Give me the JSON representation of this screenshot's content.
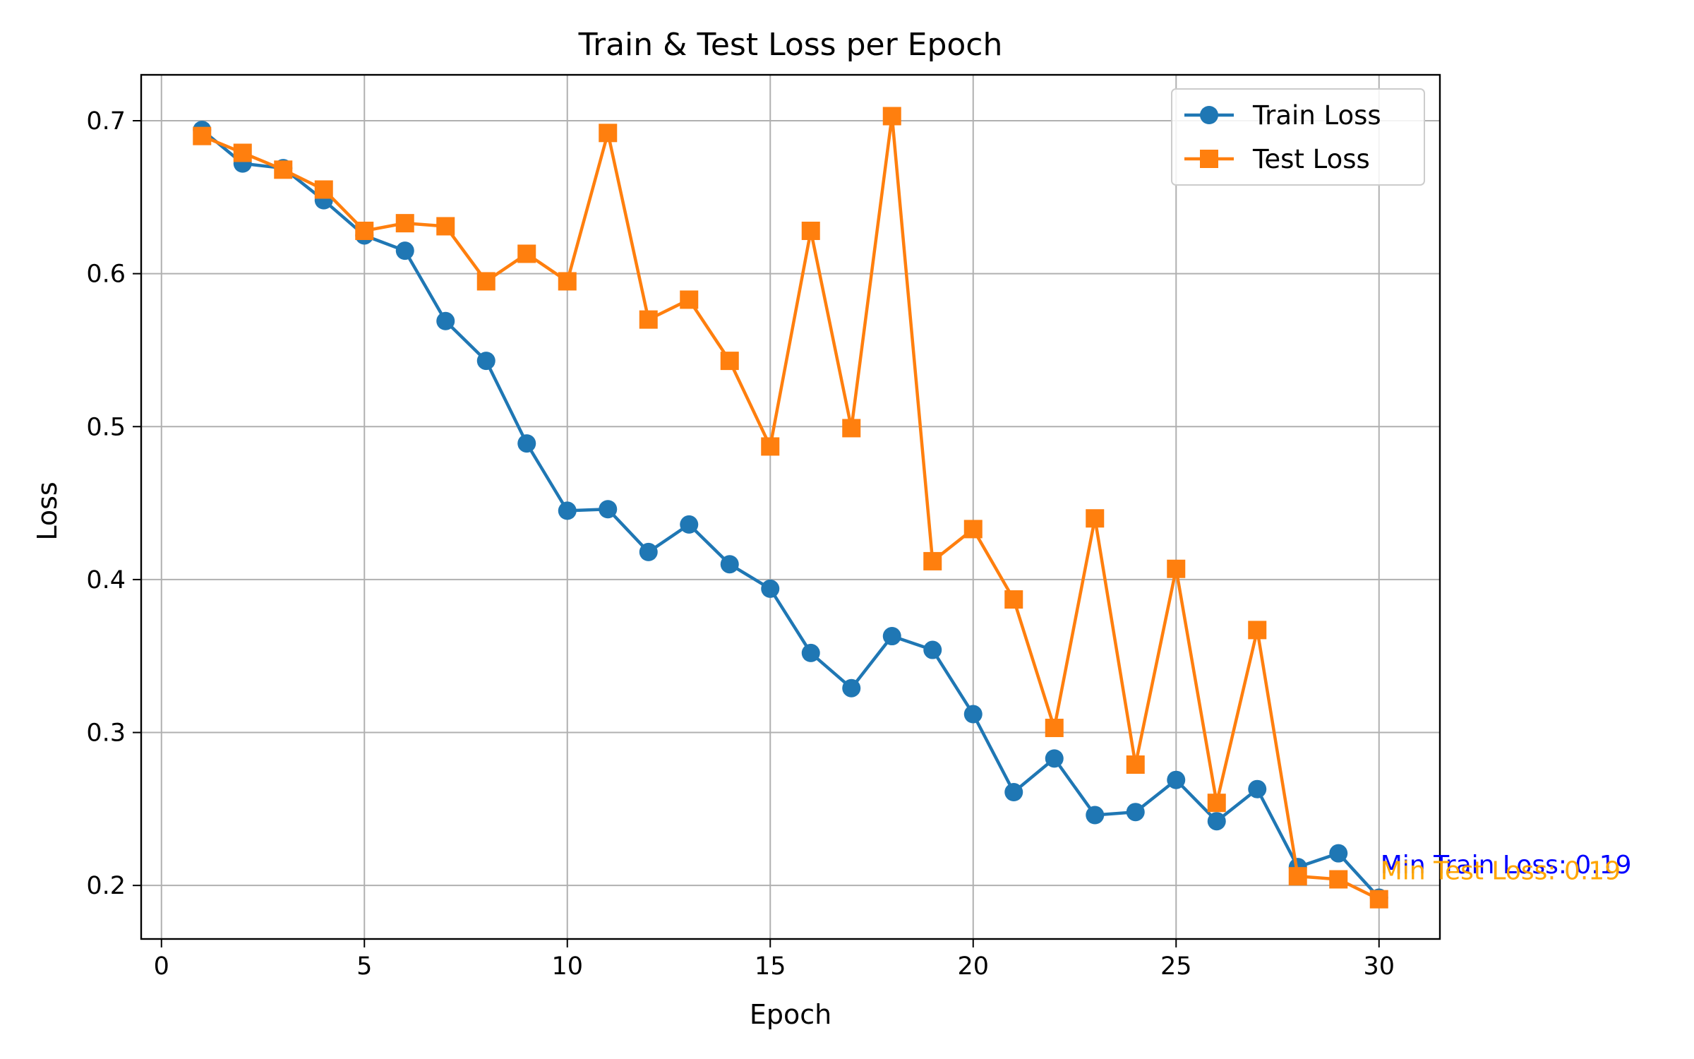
{
  "chart_data": {
    "type": "line",
    "title": "Train & Test Loss per Epoch",
    "xlabel": "Epoch",
    "ylabel": "Loss",
    "xlim": [
      -0.5,
      31.5
    ],
    "ylim": [
      0.165,
      0.73
    ],
    "xticks": [
      0,
      5,
      10,
      15,
      20,
      25,
      30
    ],
    "yticks": [
      0.2,
      0.3,
      0.4,
      0.5,
      0.6,
      0.7
    ],
    "grid": true,
    "legend": "top-right",
    "x": [
      1,
      2,
      3,
      4,
      5,
      6,
      7,
      8,
      9,
      10,
      11,
      12,
      13,
      14,
      15,
      16,
      17,
      18,
      19,
      20,
      21,
      22,
      23,
      24,
      25,
      26,
      27,
      28,
      29,
      30
    ],
    "series": [
      {
        "name": "Train Loss",
        "marker": "circle",
        "color": "#1f77b4",
        "values": [
          0.694,
          0.672,
          0.669,
          0.648,
          0.625,
          0.615,
          0.569,
          0.543,
          0.489,
          0.445,
          0.446,
          0.418,
          0.436,
          0.41,
          0.394,
          0.352,
          0.329,
          0.363,
          0.354,
          0.312,
          0.261,
          0.283,
          0.246,
          0.248,
          0.269,
          0.242,
          0.263,
          0.212,
          0.221,
          0.192
        ]
      },
      {
        "name": "Test Loss",
        "marker": "square",
        "color": "#ff7f0e",
        "values": [
          0.69,
          0.679,
          0.668,
          0.655,
          0.628,
          0.633,
          0.631,
          0.595,
          0.613,
          0.595,
          0.692,
          0.57,
          0.583,
          0.543,
          0.487,
          0.628,
          0.499,
          0.703,
          0.412,
          0.433,
          0.387,
          0.303,
          0.44,
          0.279,
          0.407,
          0.254,
          0.367,
          0.206,
          0.204,
          0.191
        ]
      }
    ],
    "annotations": [
      {
        "text": "Min Train Loss: 0.19",
        "x": 30,
        "y": 0.208,
        "color": "#0000ff"
      },
      {
        "text": "Min Test Loss: 0.19",
        "x": 30,
        "y": 0.204,
        "color": "#ffa500"
      }
    ]
  }
}
